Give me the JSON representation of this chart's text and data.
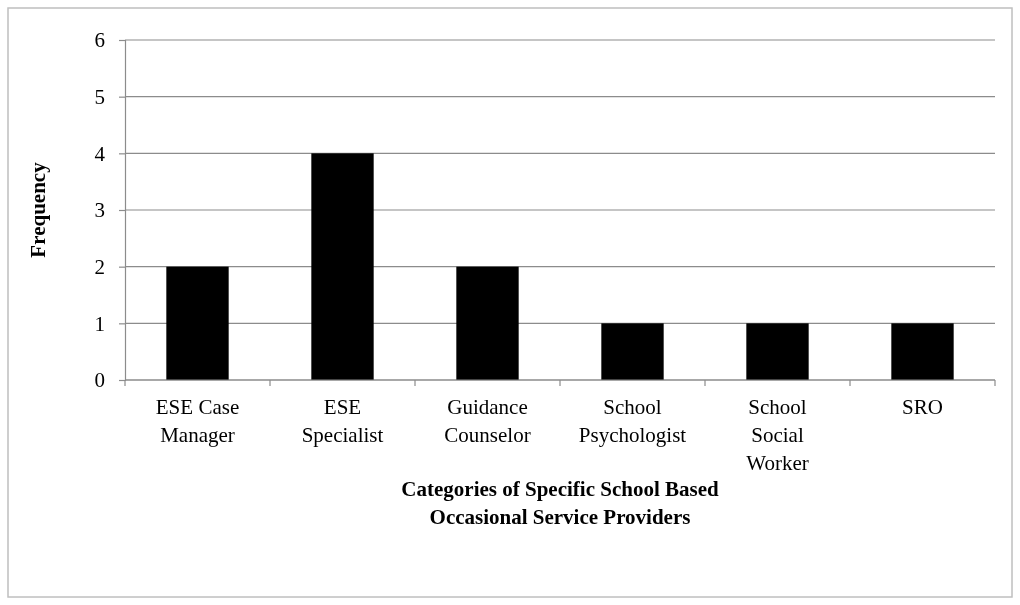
{
  "chart_data": {
    "type": "bar",
    "xlabel": "Categories of Specific School Based Occasional Service Providers",
    "ylabel": "Frequency",
    "categories": [
      "ESE Case Manager",
      "ESE Specialist",
      "Guidance Counselor",
      "School Psychologist",
      "School Social Worker",
      "SRO"
    ],
    "values": [
      2,
      4,
      2,
      1,
      1,
      1
    ],
    "color": "#000000",
    "ylim": [
      0,
      6
    ],
    "yticks": [
      0,
      1,
      2,
      3,
      4,
      5,
      6
    ],
    "grid": "y"
  }
}
